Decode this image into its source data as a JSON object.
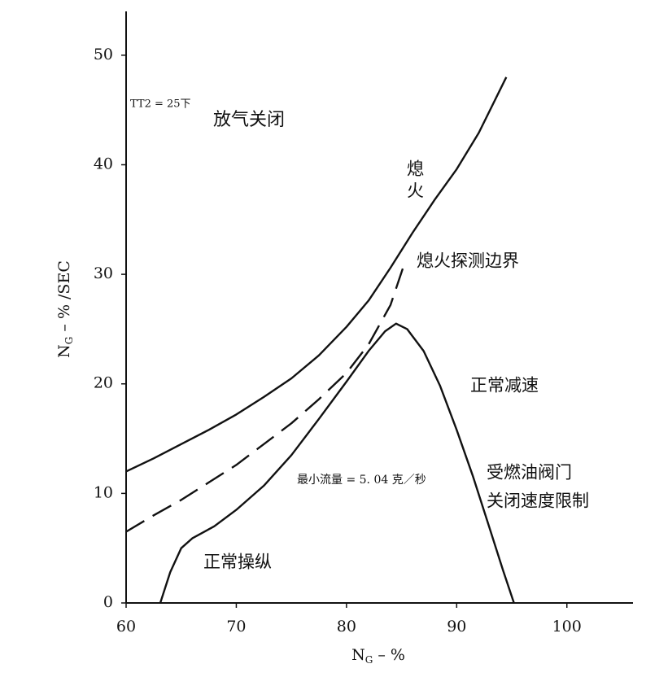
{
  "chart_data": {
    "type": "line",
    "x_axis_label": {
      "main": "N",
      "sub": "G",
      "rest": " – %"
    },
    "y_axis_label": {
      "main": "N",
      "sub": "G",
      "rest": " – % /SEC"
    },
    "xlim": [
      60,
      106
    ],
    "ylim": [
      0,
      54
    ],
    "xticks": [
      60,
      70,
      80,
      90,
      100
    ],
    "yticks": [
      0,
      10,
      20,
      30,
      40,
      50
    ],
    "series": [
      {
        "name": "熄火",
        "color": "#111111",
        "style": "solid",
        "x": [
          60,
          62.5,
          65,
          67.5,
          70,
          72.5,
          75,
          77.5,
          80,
          82,
          84,
          86,
          88,
          90,
          92,
          94.5
        ],
        "values": [
          12,
          13.2,
          14.5,
          15.8,
          17.2,
          18.8,
          20.5,
          22.6,
          25.2,
          27.6,
          30.6,
          33.8,
          36.8,
          39.6,
          42.9,
          48
        ]
      },
      {
        "name": "熄火探测边界",
        "color": "#111111",
        "style": "dashed",
        "x": [
          60,
          62.5,
          65,
          67.5,
          70,
          72.5,
          75,
          77.5,
          80,
          82,
          84,
          85.2
        ],
        "values": [
          6.5,
          8,
          9.4,
          11,
          12.6,
          14.5,
          16.4,
          18.6,
          21,
          23.6,
          27.2,
          30.8
        ]
      },
      {
        "name": "正常操纵",
        "color": "#111111",
        "style": "solid",
        "x": [
          63.1,
          64,
          65,
          66,
          68,
          70,
          72.5,
          75,
          77.5,
          80,
          82,
          83.5,
          84.5,
          85.5,
          87,
          88.5,
          90,
          91.5,
          93,
          94.2,
          95.2
        ],
        "values": [
          0,
          2.8,
          5,
          5.9,
          7,
          8.5,
          10.7,
          13.5,
          16.8,
          20.2,
          23,
          24.8,
          25.5,
          25,
          23,
          19.8,
          15.8,
          11.5,
          6.8,
          3,
          0
        ]
      }
    ],
    "annotations": [
      "TT2 = 25下",
      "放气关闭",
      "正常减速",
      "最小流量 = 5. 04 克／秒",
      "受燃油阀门",
      "关闭速度限制"
    ]
  }
}
